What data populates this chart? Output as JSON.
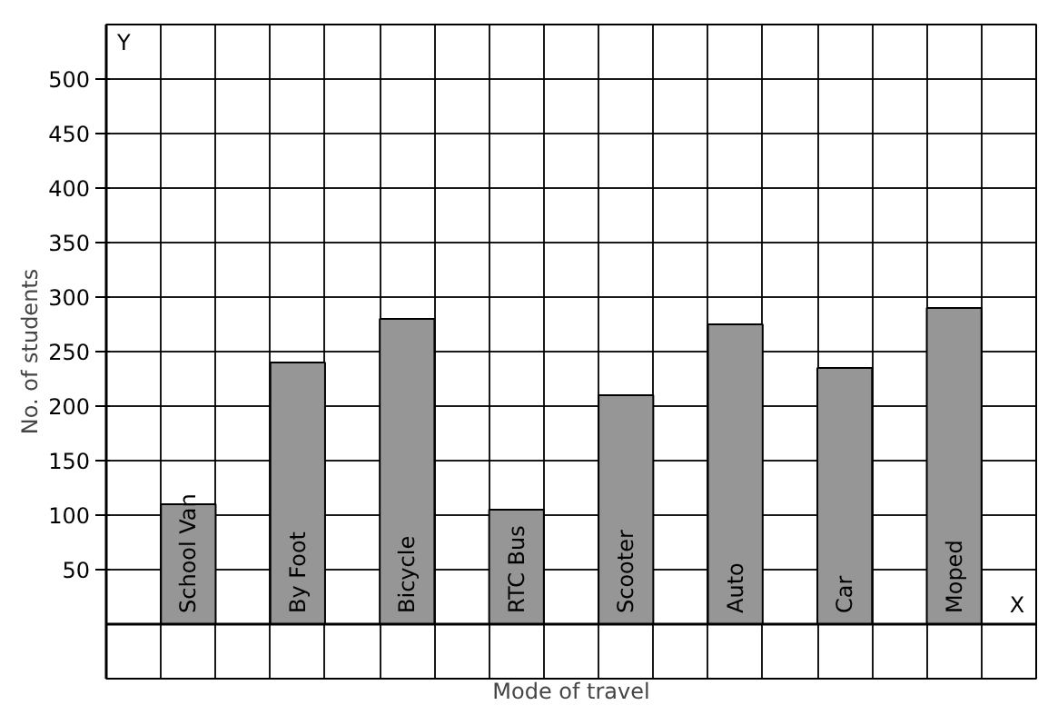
{
  "chart_data": {
    "type": "bar",
    "xlabel": "Mode of travel",
    "ylabel": "No. of students",
    "categories": [
      "School Van",
      "By Foot",
      "Bicycle",
      "RTC Bus",
      "Scooter",
      "Auto",
      "Car",
      "Moped"
    ],
    "values": [
      110,
      240,
      280,
      105,
      210,
      275,
      235,
      290
    ],
    "color": "#969696",
    "ylim": [
      -50,
      550
    ],
    "yticks": [
      50,
      100,
      150,
      200,
      250,
      300,
      350,
      400,
      450,
      500
    ],
    "grid": true,
    "annotations": [
      "X",
      "Y"
    ]
  }
}
